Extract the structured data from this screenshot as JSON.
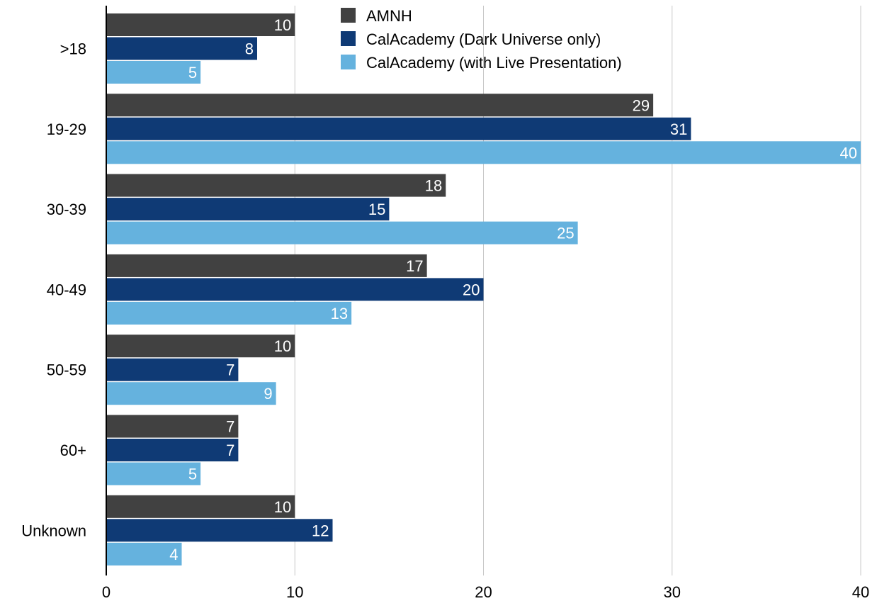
{
  "chart_data": {
    "type": "bar",
    "orientation": "horizontal",
    "categories": [
      ">18",
      "19-29",
      "30-39",
      "40-49",
      "50-59",
      "60+",
      "Unknown"
    ],
    "series": [
      {
        "name": "AMNH",
        "color": "#414141",
        "values": [
          10,
          29,
          18,
          17,
          10,
          7,
          10
        ]
      },
      {
        "name": "CalAcademy (Dark Universe only)",
        "color": "#0f3a75",
        "values": [
          8,
          31,
          15,
          20,
          7,
          7,
          12
        ]
      },
      {
        "name": "CalAcademy (with Live Presentation)",
        "color": "#65b2de",
        "values": [
          5,
          40,
          25,
          13,
          9,
          5,
          4
        ]
      }
    ],
    "x_ticks": [
      "0",
      "10",
      "20",
      "30",
      "40"
    ],
    "xlim": [
      0,
      40
    ],
    "grid": true,
    "legend_position": "top-right",
    "colors": {
      "axis": "#000000",
      "grid": "#c8c8c8",
      "data_label": "#ffffff"
    }
  }
}
